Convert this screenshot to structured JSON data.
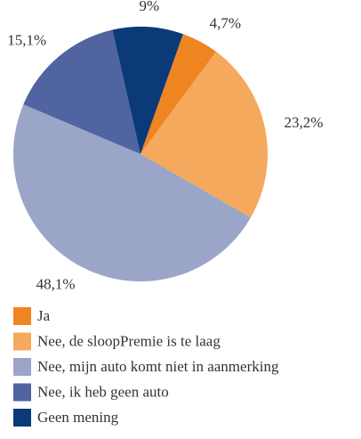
{
  "chart_data": {
    "type": "pie",
    "categories": [
      "Ja",
      "Nee, de sloopPremie is te laag",
      "Nee, mijn auto komt niet in aanmerking",
      "Nee, ik heb geen auto",
      "Geen mening"
    ],
    "values": [
      4.7,
      23.2,
      48.1,
      15.1,
      9
    ],
    "value_labels": [
      "4,7%",
      "23,2%",
      "48,1%",
      "15,1%",
      "9%"
    ],
    "colors": [
      "#ef8520",
      "#f5a95c",
      "#9aa5c8",
      "#4f64a0",
      "#0b3a78"
    ],
    "legend": "bottom"
  }
}
